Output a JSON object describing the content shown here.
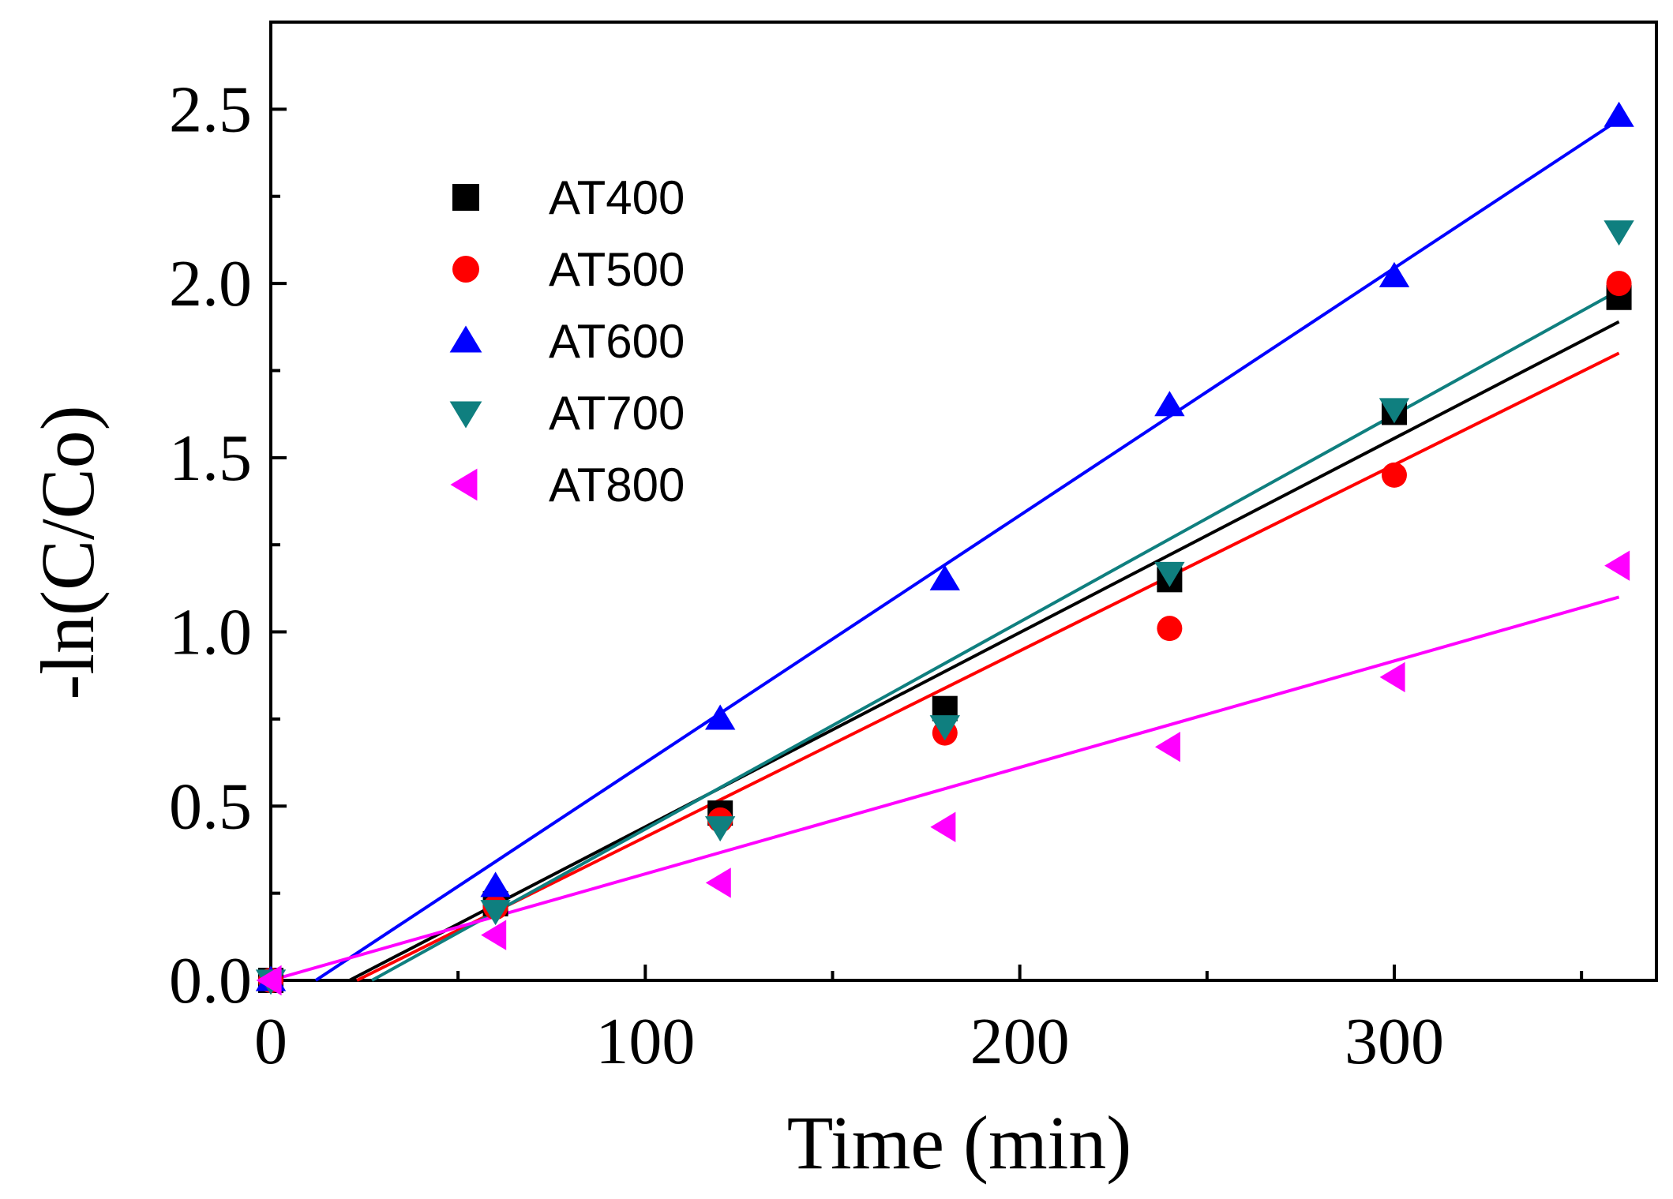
{
  "chart_data": {
    "type": "scatter",
    "title": "",
    "xlabel": "Time (min)",
    "ylabel": "-ln(C/Co)",
    "xlim": [
      0,
      370
    ],
    "ylim": [
      0,
      2.75
    ],
    "xticks": [
      0,
      100,
      200,
      300
    ],
    "xtick_labels": [
      "0",
      "100",
      "200",
      "300"
    ],
    "yticks": [
      0,
      0.5,
      1.0,
      1.5,
      2.0,
      2.5
    ],
    "ytick_labels": [
      "0.0",
      "0.5",
      "1.0",
      "1.5",
      "2.0",
      "2.5"
    ],
    "grid": false,
    "legend_position": "top-left",
    "x": [
      0,
      60,
      120,
      180,
      240,
      300,
      360
    ],
    "series": [
      {
        "name": "AT400",
        "color": "#000000",
        "marker": "square",
        "values": [
          0,
          0.22,
          0.48,
          0.78,
          1.15,
          1.63,
          1.96
        ],
        "fit": {
          "x0": 21,
          "y0": 0,
          "x1": 360,
          "y1": 1.89
        }
      },
      {
        "name": "AT500",
        "color": "#ff0000",
        "marker": "circle",
        "values": [
          0,
          0.21,
          0.46,
          0.71,
          1.01,
          1.45,
          2.0
        ],
        "fit": {
          "x0": 23,
          "y0": 0,
          "x1": 360,
          "y1": 1.8
        }
      },
      {
        "name": "AT600",
        "color": "#0000ff",
        "marker": "triangle-up",
        "values": [
          0,
          0.27,
          0.75,
          1.15,
          1.65,
          2.02,
          2.48
        ],
        "fit": {
          "x0": 12,
          "y0": 0,
          "x1": 360,
          "y1": 2.47
        }
      },
      {
        "name": "AT700",
        "color": "#0f7f7f",
        "marker": "triangle-down",
        "values": [
          0,
          0.2,
          0.44,
          0.73,
          1.17,
          1.64,
          2.15
        ],
        "fit": {
          "x0": 27,
          "y0": 0,
          "x1": 360,
          "y1": 1.98
        }
      },
      {
        "name": "AT800",
        "color": "#ff00ff",
        "marker": "triangle-left",
        "values": [
          0,
          0.13,
          0.28,
          0.44,
          0.67,
          0.87,
          1.19
        ],
        "fit": {
          "x0": 0,
          "y0": 0,
          "x1": 360,
          "y1": 1.1
        }
      }
    ]
  }
}
